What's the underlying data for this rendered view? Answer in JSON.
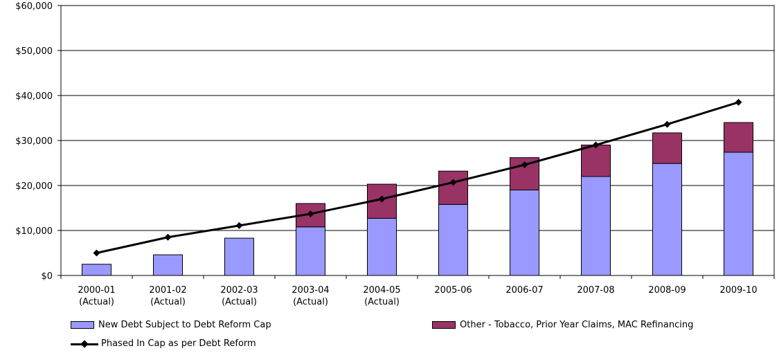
{
  "chart_data": {
    "type": "bar",
    "stacked": true,
    "categories": [
      [
        "2000-01",
        "(Actual)"
      ],
      [
        "2001-02",
        "(Actual)"
      ],
      [
        "2002-03",
        "(Actual)"
      ],
      [
        "2003-04",
        "(Actual)"
      ],
      [
        "2004-05",
        "(Actual)"
      ],
      [
        "2005-06"
      ],
      [
        "2006-07"
      ],
      [
        "2007-08"
      ],
      [
        "2008-09"
      ],
      [
        "2009-10"
      ]
    ],
    "series": [
      {
        "name": "New Debt Subject to Debt Reform Cap",
        "kind": "bar",
        "color": "#9999ff",
        "values": [
          2500,
          4600,
          8300,
          10800,
          12700,
          15800,
          19000,
          22000,
          24900,
          27400
        ]
      },
      {
        "name": "Other - Tobacco, Prior Year Claims, MAC Refinancing",
        "kind": "bar",
        "color": "#993366",
        "values": [
          0,
          0,
          0,
          5200,
          7600,
          7400,
          7200,
          7000,
          6800,
          6600
        ]
      },
      {
        "name": "Phased In Cap as per Debt Reform",
        "kind": "line",
        "color": "#000000",
        "values": [
          5000,
          8500,
          11100,
          13700,
          17000,
          20700,
          24600,
          29000,
          33600,
          38500
        ]
      }
    ],
    "y_ticks": [
      "$0",
      "$10,000",
      "$20,000",
      "$30,000",
      "$40,000",
      "$50,000",
      "$60,000"
    ],
    "ylim": [
      0,
      60000
    ],
    "grid": true,
    "legend_position": "bottom"
  }
}
